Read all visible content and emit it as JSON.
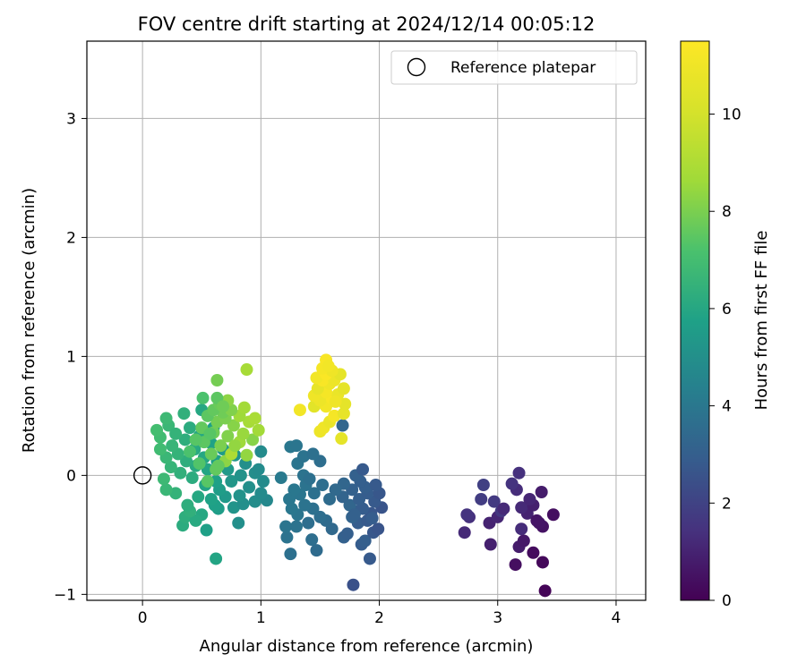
{
  "chart_data": {
    "type": "scatter",
    "title": "FOV centre drift starting at 2024/12/14 00:05:12",
    "xlabel": "Angular distance from reference (arcmin)",
    "ylabel": "Rotation from reference (arcmin)",
    "xlim": [
      -0.47,
      4.25
    ],
    "ylim": [
      -1.05,
      3.65
    ],
    "xticks": [
      0,
      1,
      2,
      3,
      4
    ],
    "xtick_labels": [
      "0",
      "1",
      "2",
      "3",
      "4"
    ],
    "yticks": [
      -1,
      0,
      1,
      2,
      3
    ],
    "yticklabels": [
      "−1",
      "0",
      "1",
      "2",
      "3"
    ],
    "grid": true,
    "legend": {
      "placement": "top-right",
      "entries": [
        "Reference platepar"
      ]
    },
    "reference_point": {
      "x": 0,
      "y": 0,
      "label": "Reference platepar",
      "marker": "open-circle"
    },
    "colorbar": {
      "label": "Hours from first FF file",
      "range": [
        0,
        11.5
      ],
      "ticks": [
        0,
        2,
        4,
        6,
        8,
        10
      ],
      "tick_labels": [
        "0",
        "2",
        "4",
        "6",
        "8",
        "10"
      ],
      "colormap": "viridis"
    },
    "points": [
      {
        "x": 3.4,
        "y": -0.97,
        "c": 0.1
      },
      {
        "x": 3.38,
        "y": -0.73,
        "c": 0.2
      },
      {
        "x": 3.15,
        "y": -0.75,
        "c": 0.4
      },
      {
        "x": 3.3,
        "y": -0.65,
        "c": 0.3
      },
      {
        "x": 3.18,
        "y": -0.6,
        "c": 0.8
      },
      {
        "x": 2.94,
        "y": -0.58,
        "c": 0.9
      },
      {
        "x": 3.22,
        "y": -0.55,
        "c": 0.7
      },
      {
        "x": 2.72,
        "y": -0.48,
        "c": 1.2
      },
      {
        "x": 3.2,
        "y": -0.45,
        "c": 1.3
      },
      {
        "x": 3.38,
        "y": -0.43,
        "c": 0.5
      },
      {
        "x": 3.35,
        "y": -0.4,
        "c": 0.6
      },
      {
        "x": 2.93,
        "y": -0.4,
        "c": 1.0
      },
      {
        "x": 3.0,
        "y": -0.35,
        "c": 1.1
      },
      {
        "x": 2.76,
        "y": -0.35,
        "c": 1.4
      },
      {
        "x": 3.47,
        "y": -0.33,
        "c": 0.4
      },
      {
        "x": 2.74,
        "y": -0.33,
        "c": 1.5
      },
      {
        "x": 3.25,
        "y": -0.32,
        "c": 1.0
      },
      {
        "x": 3.03,
        "y": -0.3,
        "c": 1.6
      },
      {
        "x": 3.2,
        "y": -0.27,
        "c": 1.2
      },
      {
        "x": 3.3,
        "y": -0.25,
        "c": 0.9
      },
      {
        "x": 2.97,
        "y": -0.22,
        "c": 1.7
      },
      {
        "x": 3.27,
        "y": -0.2,
        "c": 1.1
      },
      {
        "x": 2.86,
        "y": -0.2,
        "c": 1.8
      },
      {
        "x": 3.16,
        "y": -0.12,
        "c": 1.3
      },
      {
        "x": 3.37,
        "y": -0.14,
        "c": 0.8
      },
      {
        "x": 2.88,
        "y": -0.08,
        "c": 1.9
      },
      {
        "x": 3.12,
        "y": -0.07,
        "c": 1.5
      },
      {
        "x": 3.18,
        "y": 0.02,
        "c": 1.4
      },
      {
        "x": 3.05,
        "y": -0.28,
        "c": 1.2
      },
      {
        "x": 3.33,
        "y": -0.38,
        "c": 0.6
      },
      {
        "x": 1.78,
        "y": -0.92,
        "c": 2.5
      },
      {
        "x": 1.92,
        "y": -0.7,
        "c": 2.8
      },
      {
        "x": 1.85,
        "y": -0.58,
        "c": 2.9
      },
      {
        "x": 1.88,
        "y": -0.55,
        "c": 3.0
      },
      {
        "x": 1.7,
        "y": -0.52,
        "c": 3.1
      },
      {
        "x": 1.73,
        "y": -0.49,
        "c": 3.0
      },
      {
        "x": 1.95,
        "y": -0.48,
        "c": 2.7
      },
      {
        "x": 1.99,
        "y": -0.45,
        "c": 2.6
      },
      {
        "x": 1.82,
        "y": -0.4,
        "c": 2.9
      },
      {
        "x": 1.9,
        "y": -0.38,
        "c": 2.8
      },
      {
        "x": 1.77,
        "y": -0.35,
        "c": 3.2
      },
      {
        "x": 1.93,
        "y": -0.32,
        "c": 2.7
      },
      {
        "x": 1.8,
        "y": -0.3,
        "c": 3.0
      },
      {
        "x": 1.86,
        "y": -0.28,
        "c": 2.9
      },
      {
        "x": 2.02,
        "y": -0.27,
        "c": 2.6
      },
      {
        "x": 1.75,
        "y": -0.25,
        "c": 3.3
      },
      {
        "x": 1.96,
        "y": -0.22,
        "c": 2.8
      },
      {
        "x": 1.83,
        "y": -0.2,
        "c": 3.0
      },
      {
        "x": 1.69,
        "y": -0.18,
        "c": 3.2
      },
      {
        "x": 1.9,
        "y": -0.15,
        "c": 2.9
      },
      {
        "x": 2.0,
        "y": -0.15,
        "c": 2.7
      },
      {
        "x": 1.77,
        "y": -0.12,
        "c": 3.1
      },
      {
        "x": 1.88,
        "y": -0.1,
        "c": 3.0
      },
      {
        "x": 1.97,
        "y": -0.08,
        "c": 2.8
      },
      {
        "x": 1.7,
        "y": -0.07,
        "c": 3.3
      },
      {
        "x": 1.84,
        "y": -0.05,
        "c": 3.0
      },
      {
        "x": 1.8,
        "y": 0.0,
        "c": 3.1
      },
      {
        "x": 1.86,
        "y": 0.05,
        "c": 2.8
      },
      {
        "x": 1.94,
        "y": -0.36,
        "c": 2.9
      },
      {
        "x": 1.79,
        "y": -0.33,
        "c": 3.1
      },
      {
        "x": 1.25,
        "y": -0.66,
        "c": 3.7
      },
      {
        "x": 1.47,
        "y": -0.63,
        "c": 3.5
      },
      {
        "x": 1.43,
        "y": -0.54,
        "c": 3.6
      },
      {
        "x": 1.22,
        "y": -0.52,
        "c": 3.8
      },
      {
        "x": 1.6,
        "y": -0.45,
        "c": 3.4
      },
      {
        "x": 1.21,
        "y": -0.43,
        "c": 3.9
      },
      {
        "x": 1.3,
        "y": -0.43,
        "c": 3.8
      },
      {
        "x": 1.4,
        "y": -0.4,
        "c": 3.6
      },
      {
        "x": 1.55,
        "y": -0.38,
        "c": 3.5
      },
      {
        "x": 1.31,
        "y": -0.33,
        "c": 3.9
      },
      {
        "x": 1.5,
        "y": -0.35,
        "c": 3.6
      },
      {
        "x": 1.26,
        "y": -0.28,
        "c": 4.0
      },
      {
        "x": 1.44,
        "y": -0.28,
        "c": 3.7
      },
      {
        "x": 1.37,
        "y": -0.25,
        "c": 3.8
      },
      {
        "x": 1.58,
        "y": -0.2,
        "c": 3.5
      },
      {
        "x": 1.24,
        "y": -0.2,
        "c": 4.0
      },
      {
        "x": 1.33,
        "y": -0.16,
        "c": 3.9
      },
      {
        "x": 1.45,
        "y": -0.15,
        "c": 3.7
      },
      {
        "x": 1.63,
        "y": -0.12,
        "c": 3.4
      },
      {
        "x": 1.28,
        "y": -0.12,
        "c": 4.0
      },
      {
        "x": 1.38,
        "y": -0.08,
        "c": 3.8
      },
      {
        "x": 1.52,
        "y": -0.08,
        "c": 3.6
      },
      {
        "x": 1.17,
        "y": -0.02,
        "c": 4.1
      },
      {
        "x": 1.36,
        "y": 0.0,
        "c": 3.8
      },
      {
        "x": 1.41,
        "y": -0.03,
        "c": 3.7
      },
      {
        "x": 1.31,
        "y": 0.1,
        "c": 3.9
      },
      {
        "x": 1.5,
        "y": 0.12,
        "c": 3.6
      },
      {
        "x": 1.36,
        "y": 0.16,
        "c": 3.8
      },
      {
        "x": 1.44,
        "y": 0.18,
        "c": 3.7
      },
      {
        "x": 1.25,
        "y": 0.24,
        "c": 4.0
      },
      {
        "x": 1.3,
        "y": 0.25,
        "c": 3.9
      },
      {
        "x": 1.69,
        "y": 0.42,
        "c": 3.3
      },
      {
        "x": 0.62,
        "y": -0.7,
        "c": 5.9
      },
      {
        "x": 0.54,
        "y": -0.46,
        "c": 5.7
      },
      {
        "x": 0.34,
        "y": -0.42,
        "c": 6.2
      },
      {
        "x": 0.81,
        "y": -0.4,
        "c": 5.0
      },
      {
        "x": 0.36,
        "y": -0.35,
        "c": 6.3
      },
      {
        "x": 0.5,
        "y": -0.33,
        "c": 6.0
      },
      {
        "x": 0.45,
        "y": -0.38,
        "c": 6.1
      },
      {
        "x": 0.4,
        "y": -0.3,
        "c": 6.4
      },
      {
        "x": 0.64,
        "y": -0.28,
        "c": 5.6
      },
      {
        "x": 0.77,
        "y": -0.27,
        "c": 5.2
      },
      {
        "x": 0.61,
        "y": -0.25,
        "c": 5.7
      },
      {
        "x": 0.38,
        "y": -0.25,
        "c": 6.3
      },
      {
        "x": 0.85,
        "y": -0.24,
        "c": 5.0
      },
      {
        "x": 0.95,
        "y": -0.22,
        "c": 4.9
      },
      {
        "x": 1.05,
        "y": -0.21,
        "c": 4.7
      },
      {
        "x": 0.58,
        "y": -0.2,
        "c": 5.8
      },
      {
        "x": 0.47,
        "y": -0.18,
        "c": 6.0
      },
      {
        "x": 0.7,
        "y": -0.18,
        "c": 5.4
      },
      {
        "x": 0.82,
        "y": -0.17,
        "c": 5.1
      },
      {
        "x": 1.0,
        "y": -0.15,
        "c": 4.8
      },
      {
        "x": 0.28,
        "y": -0.15,
        "c": 6.5
      },
      {
        "x": 0.2,
        "y": -0.12,
        "c": 6.7
      },
      {
        "x": 0.65,
        "y": -0.12,
        "c": 5.6
      },
      {
        "x": 0.9,
        "y": -0.1,
        "c": 5.0
      },
      {
        "x": 0.53,
        "y": -0.08,
        "c": 5.9
      },
      {
        "x": 0.75,
        "y": -0.05,
        "c": 5.3
      },
      {
        "x": 1.02,
        "y": -0.05,
        "c": 4.8
      },
      {
        "x": 0.18,
        "y": -0.03,
        "c": 6.8
      },
      {
        "x": 0.42,
        "y": -0.02,
        "c": 6.2
      },
      {
        "x": 0.62,
        "y": -0.05,
        "c": 5.7
      },
      {
        "x": 0.83,
        "y": 0.0,
        "c": 5.1
      },
      {
        "x": 0.95,
        "y": 0.02,
        "c": 4.9
      },
      {
        "x": 0.32,
        "y": 0.02,
        "c": 6.4
      },
      {
        "x": 0.55,
        "y": 0.05,
        "c": 5.9
      },
      {
        "x": 0.72,
        "y": 0.05,
        "c": 5.4
      },
      {
        "x": 0.24,
        "y": 0.07,
        "c": 6.6
      },
      {
        "x": 0.45,
        "y": 0.08,
        "c": 6.1
      },
      {
        "x": 0.98,
        "y": 0.05,
        "c": 4.8
      },
      {
        "x": 0.87,
        "y": 0.1,
        "c": 5.0
      },
      {
        "x": 0.63,
        "y": 0.12,
        "c": 5.7
      },
      {
        "x": 0.37,
        "y": 0.12,
        "c": 6.3
      },
      {
        "x": 0.2,
        "y": 0.15,
        "c": 6.7
      },
      {
        "x": 0.52,
        "y": 0.15,
        "c": 6.0
      },
      {
        "x": 0.78,
        "y": 0.17,
        "c": 5.2
      },
      {
        "x": 0.3,
        "y": 0.18,
        "c": 6.5
      },
      {
        "x": 1.0,
        "y": 0.2,
        "c": 4.8
      },
      {
        "x": 0.44,
        "y": 0.22,
        "c": 6.1
      },
      {
        "x": 0.68,
        "y": 0.22,
        "c": 5.5
      },
      {
        "x": 0.25,
        "y": 0.25,
        "c": 6.6
      },
      {
        "x": 0.58,
        "y": 0.27,
        "c": 5.8
      },
      {
        "x": 0.36,
        "y": 0.3,
        "c": 6.3
      },
      {
        "x": 0.15,
        "y": 0.32,
        "c": 6.9
      },
      {
        "x": 0.48,
        "y": 0.33,
        "c": 6.0
      },
      {
        "x": 0.12,
        "y": 0.38,
        "c": 7.0
      },
      {
        "x": 0.4,
        "y": 0.4,
        "c": 6.2
      },
      {
        "x": 0.6,
        "y": 0.4,
        "c": 5.7
      },
      {
        "x": 0.22,
        "y": 0.42,
        "c": 6.7
      },
      {
        "x": 0.2,
        "y": 0.48,
        "c": 6.8
      },
      {
        "x": 0.35,
        "y": 0.52,
        "c": 6.4
      },
      {
        "x": 0.5,
        "y": 0.55,
        "c": 6.0
      },
      {
        "x": 0.15,
        "y": 0.22,
        "c": 6.9
      },
      {
        "x": 0.28,
        "y": 0.35,
        "c": 6.5
      },
      {
        "x": 0.55,
        "y": -0.05,
        "c": 7.4
      },
      {
        "x": 0.62,
        "y": 0.05,
        "c": 7.6
      },
      {
        "x": 0.48,
        "y": 0.1,
        "c": 7.3
      },
      {
        "x": 0.7,
        "y": 0.12,
        "c": 8.3
      },
      {
        "x": 0.75,
        "y": 0.18,
        "c": 9.0
      },
      {
        "x": 0.58,
        "y": 0.18,
        "c": 7.7
      },
      {
        "x": 0.88,
        "y": 0.17,
        "c": 8.4
      },
      {
        "x": 0.4,
        "y": 0.2,
        "c": 7.2
      },
      {
        "x": 0.66,
        "y": 0.25,
        "c": 8.0
      },
      {
        "x": 0.82,
        "y": 0.28,
        "c": 8.6
      },
      {
        "x": 0.52,
        "y": 0.28,
        "c": 7.5
      },
      {
        "x": 0.93,
        "y": 0.3,
        "c": 8.2
      },
      {
        "x": 0.45,
        "y": 0.3,
        "c": 7.4
      },
      {
        "x": 0.72,
        "y": 0.33,
        "c": 8.1
      },
      {
        "x": 0.85,
        "y": 0.35,
        "c": 8.5
      },
      {
        "x": 0.6,
        "y": 0.36,
        "c": 7.8
      },
      {
        "x": 0.98,
        "y": 0.38,
        "c": 8.7
      },
      {
        "x": 0.5,
        "y": 0.4,
        "c": 7.6
      },
      {
        "x": 0.77,
        "y": 0.42,
        "c": 8.2
      },
      {
        "x": 0.63,
        "y": 0.45,
        "c": 7.9
      },
      {
        "x": 0.9,
        "y": 0.45,
        "c": 8.8
      },
      {
        "x": 0.7,
        "y": 0.48,
        "c": 8.0
      },
      {
        "x": 0.55,
        "y": 0.5,
        "c": 7.5
      },
      {
        "x": 0.82,
        "y": 0.5,
        "c": 8.6
      },
      {
        "x": 0.95,
        "y": 0.48,
        "c": 8.9
      },
      {
        "x": 0.68,
        "y": 0.53,
        "c": 7.8
      },
      {
        "x": 0.75,
        "y": 0.55,
        "c": 8.1
      },
      {
        "x": 0.6,
        "y": 0.55,
        "c": 7.6
      },
      {
        "x": 0.86,
        "y": 0.57,
        "c": 8.7
      },
      {
        "x": 0.65,
        "y": 0.6,
        "c": 7.7
      },
      {
        "x": 0.72,
        "y": 0.63,
        "c": 8.3
      },
      {
        "x": 0.51,
        "y": 0.65,
        "c": 7.2
      },
      {
        "x": 0.63,
        "y": 0.65,
        "c": 7.5
      },
      {
        "x": 0.68,
        "y": 0.58,
        "c": 7.8
      },
      {
        "x": 0.63,
        "y": 0.8,
        "c": 7.9
      },
      {
        "x": 0.88,
        "y": 0.89,
        "c": 8.8
      },
      {
        "x": 0.57,
        "y": 0.35,
        "c": 7.4
      },
      {
        "x": 0.78,
        "y": 0.25,
        "c": 8.4
      },
      {
        "x": 0.64,
        "y": 0.08,
        "c": 7.6
      },
      {
        "x": 1.68,
        "y": 0.31,
        "c": 10.6
      },
      {
        "x": 1.5,
        "y": 0.37,
        "c": 10.9
      },
      {
        "x": 1.53,
        "y": 0.4,
        "c": 11.0
      },
      {
        "x": 1.58,
        "y": 0.45,
        "c": 10.8
      },
      {
        "x": 1.62,
        "y": 0.5,
        "c": 11.2
      },
      {
        "x": 1.7,
        "y": 0.52,
        "c": 10.7
      },
      {
        "x": 1.33,
        "y": 0.55,
        "c": 11.1
      },
      {
        "x": 1.45,
        "y": 0.58,
        "c": 10.5
      },
      {
        "x": 1.55,
        "y": 0.58,
        "c": 11.1
      },
      {
        "x": 1.71,
        "y": 0.6,
        "c": 10.6
      },
      {
        "x": 1.5,
        "y": 0.63,
        "c": 10.9
      },
      {
        "x": 1.6,
        "y": 0.65,
        "c": 11.3
      },
      {
        "x": 1.45,
        "y": 0.67,
        "c": 11.0
      },
      {
        "x": 1.65,
        "y": 0.68,
        "c": 10.8
      },
      {
        "x": 1.55,
        "y": 0.7,
        "c": 11.2
      },
      {
        "x": 1.48,
        "y": 0.73,
        "c": 10.7
      },
      {
        "x": 1.7,
        "y": 0.73,
        "c": 10.6
      },
      {
        "x": 1.58,
        "y": 0.77,
        "c": 11.0
      },
      {
        "x": 1.52,
        "y": 0.8,
        "c": 11.3
      },
      {
        "x": 1.62,
        "y": 0.8,
        "c": 10.9
      },
      {
        "x": 1.47,
        "y": 0.82,
        "c": 11.1
      },
      {
        "x": 1.67,
        "y": 0.85,
        "c": 10.6
      },
      {
        "x": 1.55,
        "y": 0.85,
        "c": 11.4
      },
      {
        "x": 1.6,
        "y": 0.88,
        "c": 11.0
      },
      {
        "x": 1.52,
        "y": 0.9,
        "c": 11.2
      },
      {
        "x": 1.55,
        "y": 0.97,
        "c": 11.3
      },
      {
        "x": 1.57,
        "y": 0.92,
        "c": 11.1
      },
      {
        "x": 1.63,
        "y": 0.62,
        "c": 11.0
      }
    ]
  }
}
